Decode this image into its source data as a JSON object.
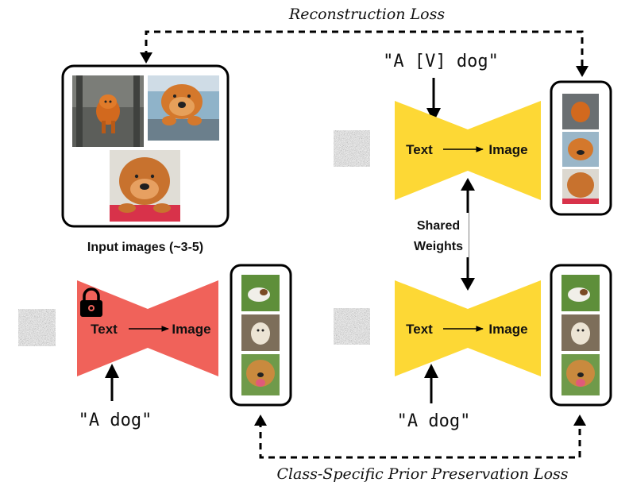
{
  "labels": {
    "reconstruction_loss": "Reconstruction Loss",
    "prior_preservation_loss": "Class-Specific Prior Preservation Loss",
    "input_images": "Input images (~3-5)",
    "shared_weights_line1": "Shared",
    "shared_weights_line2": "Weights",
    "prompt_identifier": "\"A [V] dog\"",
    "prompt_class_left": "\"A dog\"",
    "prompt_class_right": "\"A dog\""
  },
  "models": {
    "frozen": {
      "text": "Text",
      "image": "Image",
      "color": "#f0625a"
    },
    "finetuned_top": {
      "text": "Text",
      "image": "Image",
      "color": "#fdd835"
    },
    "finetuned_bottom": {
      "text": "Text",
      "image": "Image",
      "color": "#fdd835"
    }
  },
  "image_content": {
    "input_photos": [
      "chow-chow-walking",
      "chow-chow-car-window",
      "chow-chow-lying"
    ],
    "class_photos": [
      "jack-russell-on-grass",
      "labrador-sitting",
      "shepherd-mix-close-up"
    ]
  }
}
